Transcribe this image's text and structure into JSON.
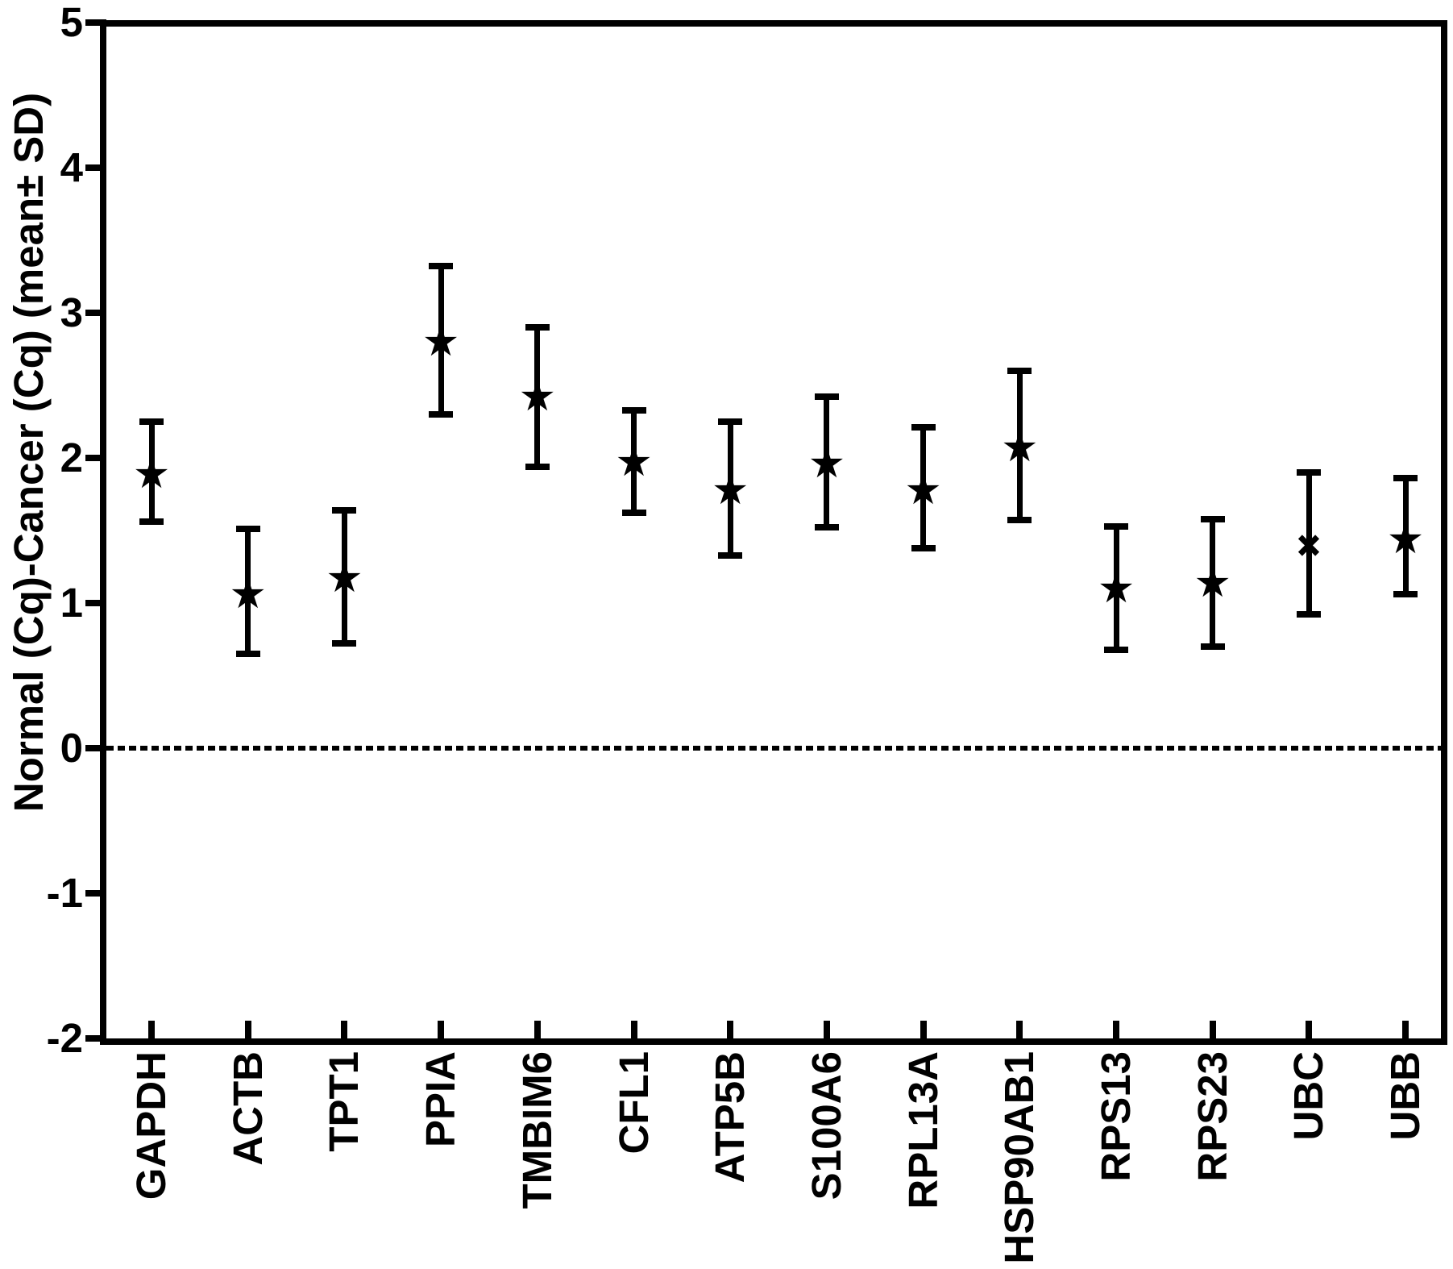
{
  "figure": {
    "background_color": "#ffffff",
    "axis_color": "#000000"
  },
  "chart_data": {
    "type": "scatter",
    "subtype": "point-errorbar",
    "title": "",
    "xlabel": "",
    "ylabel": "Normal (Cq)-Cancer (Cq) (mean± SD)",
    "ylim": [
      -2,
      5
    ],
    "yticks": [
      5,
      4,
      3,
      2,
      1,
      0,
      -1,
      -2
    ],
    "grid": false,
    "legend": "none",
    "reference_line_y": 0,
    "reference_line_style": "dashed",
    "categories": [
      "GAPDH",
      "ACTB",
      "TPT1",
      "PPIA",
      "TMBIM6",
      "CFL1",
      "ATP5B",
      "S100A6",
      "RPL13A",
      "HSP90AB1",
      "RPS13",
      "RPS23",
      "UBC",
      "UBB"
    ],
    "series": [
      {
        "name": "Normal (Cq) minus Cancer (Cq), mean with SD error bars",
        "means": [
          1.89,
          1.06,
          1.17,
          2.8,
          2.42,
          1.97,
          1.78,
          1.96,
          1.78,
          2.07,
          1.1,
          1.14,
          1.4,
          1.44
        ],
        "upper": [
          2.25,
          1.51,
          1.64,
          3.32,
          2.9,
          2.33,
          2.25,
          2.42,
          2.21,
          2.6,
          1.53,
          1.58,
          1.9,
          1.86
        ],
        "lower": [
          1.56,
          0.65,
          0.72,
          2.3,
          1.94,
          1.62,
          1.33,
          1.52,
          1.38,
          1.57,
          0.68,
          0.7,
          0.92,
          1.06
        ],
        "markers": [
          "star",
          "star",
          "star",
          "star",
          "star",
          "star",
          "star",
          "star",
          "star",
          "star",
          "star",
          "star",
          "x",
          "star"
        ]
      }
    ]
  }
}
